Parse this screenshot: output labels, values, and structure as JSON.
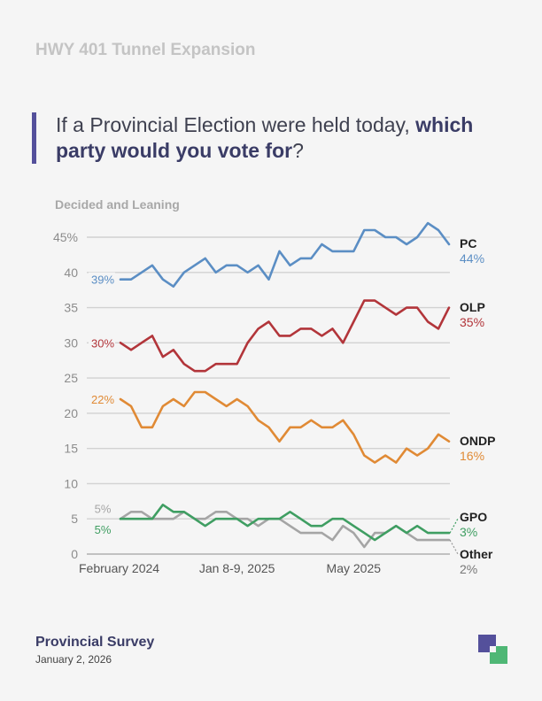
{
  "header": {
    "project": "HWY 401 Tunnel Expansion",
    "question_start": "If a Provincial Election were held today, ",
    "question_bold": "which party would you vote for",
    "question_end": "?"
  },
  "footer": {
    "title": "Provincial Survey",
    "date": "January 2, 2026"
  },
  "logo": {
    "colors": [
      "#54509b",
      "#4fb775"
    ]
  },
  "chart_data": {
    "type": "line",
    "title": "",
    "subtitle": "Decided and Leaning",
    "ylim": [
      0,
      45
    ],
    "y_ticks": [
      0,
      5,
      10,
      15,
      20,
      25,
      30,
      35,
      40,
      45
    ],
    "y_tick_labels": [
      "0",
      "5",
      "10",
      "15",
      "20",
      "25",
      "30",
      "35",
      "40",
      "45%"
    ],
    "grid": true,
    "x_tick_labels": [
      {
        "label": "February 2024",
        "index": 0
      },
      {
        "label": "Jan 8-9, 2025",
        "index": 11
      },
      {
        "label": "May 2025",
        "index": 22
      }
    ],
    "series": [
      {
        "name": "PC",
        "color": "#5b8ec4",
        "start_label": "39%",
        "end_label": "44%",
        "values": [
          39,
          39,
          40,
          41,
          39,
          38,
          40,
          41,
          42,
          40,
          41,
          41,
          40,
          41,
          39,
          43,
          41,
          42,
          42,
          44,
          43,
          43,
          43,
          46,
          46,
          45,
          45,
          44,
          45,
          47,
          46,
          44
        ]
      },
      {
        "name": "OLP",
        "color": "#b2353a",
        "start_label": "30%",
        "end_label": "35%",
        "values": [
          30,
          29,
          30,
          31,
          28,
          29,
          27,
          26,
          26,
          27,
          27,
          27,
          30,
          32,
          33,
          31,
          31,
          32,
          32,
          31,
          32,
          30,
          33,
          36,
          36,
          35,
          34,
          35,
          35,
          33,
          32,
          35
        ]
      },
      {
        "name": "ONDP",
        "color": "#e08a35",
        "start_label": "22%",
        "end_label": "16%",
        "values": [
          22,
          21,
          18,
          18,
          21,
          22,
          21,
          23,
          23,
          22,
          21,
          22,
          21,
          19,
          18,
          16,
          18,
          18,
          19,
          18,
          18,
          19,
          17,
          14,
          13,
          14,
          13,
          15,
          14,
          15,
          17,
          16
        ]
      },
      {
        "name": "GPO",
        "color": "#3f9e62",
        "start_label": "5%",
        "end_label": "3%",
        "values": [
          5,
          5,
          5,
          5,
          7,
          6,
          6,
          5,
          4,
          5,
          5,
          5,
          4,
          5,
          5,
          5,
          6,
          5,
          4,
          4,
          5,
          5,
          4,
          3,
          2,
          3,
          4,
          3,
          4,
          3,
          3,
          3
        ]
      },
      {
        "name": "Other",
        "color": "#a5a5a5",
        "start_label": "5%",
        "end_label": "2%",
        "values": [
          5,
          6,
          6,
          5,
          5,
          5,
          6,
          5,
          5,
          6,
          6,
          5,
          5,
          4,
          5,
          5,
          4,
          3,
          3,
          3,
          2,
          4,
          3,
          1,
          3,
          3,
          4,
          3,
          2,
          2,
          2,
          2
        ]
      }
    ]
  }
}
